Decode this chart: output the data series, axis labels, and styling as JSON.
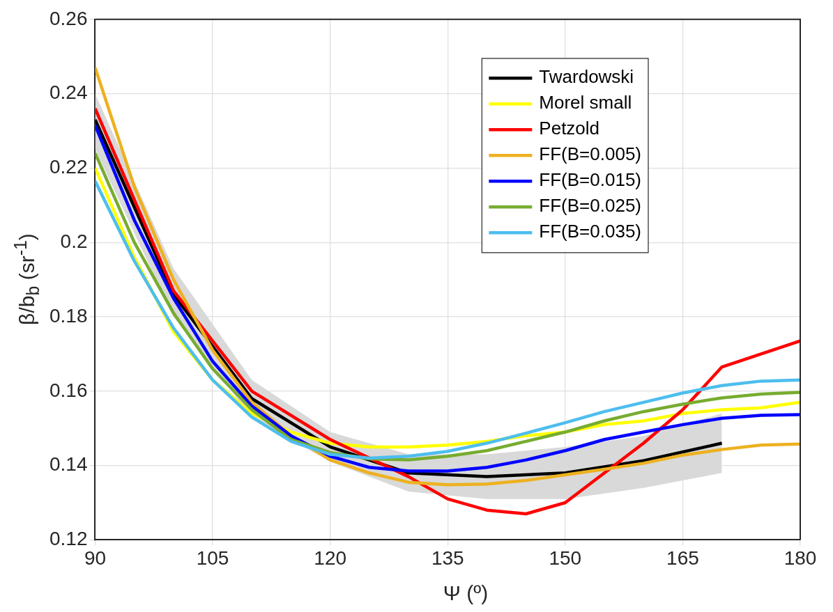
{
  "chart_data": {
    "type": "line",
    "xlabel": "Ψ (º)",
    "ylabel": "β/b$_{b}$ (sr$^{-1}$)",
    "xlim": [
      90,
      180
    ],
    "xticks": [
      90,
      105,
      120,
      135,
      150,
      165,
      180
    ],
    "ylim": [
      0.12,
      0.26
    ],
    "yticks": [
      0.12,
      0.14,
      0.16,
      0.18,
      0.2,
      0.22,
      0.24,
      0.26
    ],
    "grid": true,
    "legend": "top right",
    "line_style": "solid",
    "marker": "none",
    "series": [
      {
        "name": "Twardowski",
        "color": "#000000",
        "x": [
          90,
          100,
          110,
          120,
          130,
          140,
          150,
          160,
          170
        ],
        "values": [
          0.233,
          0.186,
          0.158,
          0.145,
          0.138,
          0.137,
          0.138,
          0.1413,
          0.146
        ],
        "lower": [
          0.225,
          0.18,
          0.153,
          0.141,
          0.133,
          0.131,
          0.131,
          0.134,
          0.138
        ],
        "upper": [
          0.24,
          0.193,
          0.163,
          0.149,
          0.143,
          0.143,
          0.145,
          0.148,
          0.154
        ]
      },
      {
        "name": "Morel small",
        "color": "#ffff00",
        "x": [
          90,
          95,
          100,
          105,
          110,
          115,
          120,
          125,
          130,
          135,
          140,
          145,
          150,
          155,
          160,
          165,
          170,
          175,
          180
        ],
        "values": [
          0.22,
          0.196,
          0.176,
          0.163,
          0.154,
          0.149,
          0.146,
          0.145,
          0.145,
          0.1455,
          0.1465,
          0.148,
          0.149,
          0.151,
          0.152,
          0.154,
          0.155,
          0.1555,
          0.157
        ]
      },
      {
        "name": "Petzold",
        "color": "#ff0000",
        "x": [
          90,
          100,
          110,
          120,
          130,
          135,
          140,
          145,
          150,
          155,
          160,
          165,
          170,
          180
        ],
        "values": [
          0.236,
          0.187,
          0.16,
          0.147,
          0.137,
          0.131,
          0.128,
          0.127,
          0.13,
          0.138,
          0.146,
          0.155,
          0.1665,
          0.1735
        ]
      },
      {
        "name": "FF(B=0.005)",
        "color": "#edb120",
        "x": [
          90,
          95,
          100,
          105,
          110,
          115,
          120,
          125,
          130,
          135,
          140,
          145,
          150,
          155,
          160,
          165,
          170,
          175,
          180
        ],
        "values": [
          0.247,
          0.215,
          0.19,
          0.171,
          0.157,
          0.148,
          0.1415,
          0.138,
          0.1355,
          0.1348,
          0.135,
          0.136,
          0.1375,
          0.139,
          0.1406,
          0.1428,
          0.1443,
          0.1455,
          0.1458
        ]
      },
      {
        "name": "FF(B=0.015)",
        "color": "#0000ff",
        "x": [
          90,
          95,
          100,
          105,
          110,
          115,
          120,
          125,
          130,
          135,
          140,
          145,
          150,
          155,
          160,
          165,
          170,
          175,
          180
        ],
        "values": [
          0.2315,
          0.206,
          0.185,
          0.168,
          0.156,
          0.148,
          0.1425,
          0.1395,
          0.1385,
          0.1385,
          0.1395,
          0.1415,
          0.144,
          0.147,
          0.149,
          0.151,
          0.1527,
          0.1535,
          0.1537
        ]
      },
      {
        "name": "FF(B=0.025)",
        "color": "#77ac30",
        "x": [
          90,
          95,
          100,
          105,
          110,
          115,
          120,
          125,
          130,
          135,
          140,
          145,
          150,
          155,
          160,
          165,
          170,
          175,
          180
        ],
        "values": [
          0.224,
          0.2,
          0.181,
          0.166,
          0.155,
          0.147,
          0.1435,
          0.1418,
          0.1415,
          0.1425,
          0.144,
          0.1465,
          0.149,
          0.152,
          0.1545,
          0.1565,
          0.1582,
          0.1592,
          0.1597
        ]
      },
      {
        "name": "FF(B=0.035)",
        "color": "#4dbeee",
        "x": [
          90,
          95,
          100,
          105,
          110,
          115,
          120,
          125,
          130,
          135,
          140,
          145,
          150,
          155,
          160,
          165,
          170,
          175,
          180
        ],
        "values": [
          0.2165,
          0.195,
          0.177,
          0.163,
          0.153,
          0.1465,
          0.143,
          0.142,
          0.1425,
          0.1438,
          0.146,
          0.1487,
          0.1515,
          0.1545,
          0.157,
          0.1595,
          0.1615,
          0.1627,
          0.163
        ]
      }
    ]
  }
}
